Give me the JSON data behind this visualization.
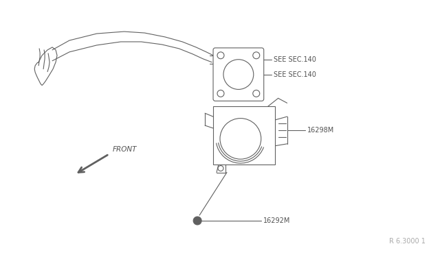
{
  "bg_color": "#ffffff",
  "line_color": "#606060",
  "text_color": "#505050",
  "watermark": "R 6.3000 1",
  "labels": {
    "see_sec_140_top": "SEE SEC.140",
    "see_sec_140_bot": "SEE SEC.140",
    "part_16298M": "16298M",
    "part_16292M": "16292M",
    "front": "FRONT"
  },
  "figsize": [
    6.4,
    3.72
  ],
  "dpi": 100
}
